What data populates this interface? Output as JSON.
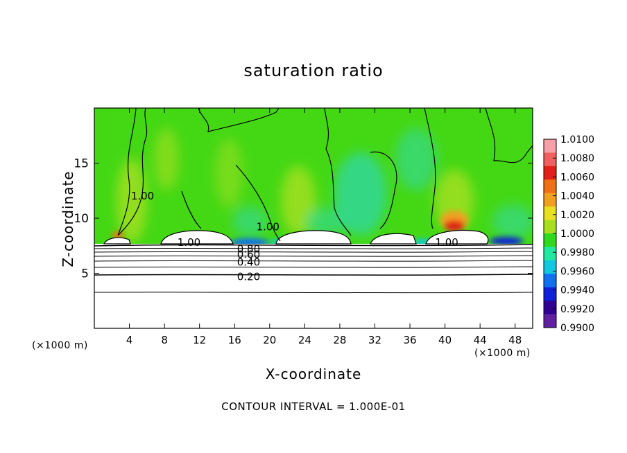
{
  "chart_data": {
    "type": "heatmap",
    "title": "saturation ratio",
    "xlabel": "X-coordinate",
    "ylabel": "Z-coordinate",
    "x_unit_label": "(×1000 m)",
    "z_unit_label": "(×1000 m)",
    "xlim": [
      0,
      50
    ],
    "ylim": [
      0,
      20
    ],
    "x_ticks": [
      4,
      8,
      12,
      16,
      20,
      24,
      28,
      32,
      36,
      40,
      44,
      48
    ],
    "y_ticks": [
      5,
      10,
      15
    ],
    "colorbar": {
      "min": 0.99,
      "max": 1.01,
      "labels": [
        "1.0100",
        "1.0080",
        "1.0060",
        "1.0040",
        "1.0020",
        "1.0000",
        "0.9980",
        "0.9960",
        "0.9940",
        "0.9920",
        "0.9900"
      ],
      "colors": [
        "#f7a0a8",
        "#f06060",
        "#e02018",
        "#f07018",
        "#f0a020",
        "#e8e020",
        "#a8e020",
        "#30d820",
        "#20e8a0",
        "#10c8e0",
        "#1070f0",
        "#1020d8",
        "#300090",
        "#6020a0"
      ]
    },
    "contour_labels": [
      {
        "text": "1.00",
        "x": 10.8,
        "z": 7.8
      },
      {
        "text": "1.00",
        "x": 40.2,
        "z": 7.8
      },
      {
        "text": "1.00",
        "x": 5.5,
        "z": 12.0
      },
      {
        "text": "1.00",
        "x": 19.8,
        "z": 9.2
      },
      {
        "text": "0.80",
        "x": 17.6,
        "z": 7.2
      },
      {
        "text": "0.60",
        "x": 17.6,
        "z": 6.7
      },
      {
        "text": "0.40",
        "x": 17.6,
        "z": 6.0
      },
      {
        "text": "0.20",
        "x": 17.6,
        "z": 4.7
      }
    ],
    "contour_interval_note": "CONTOUR INTERVAL = 1.000E-01"
  }
}
